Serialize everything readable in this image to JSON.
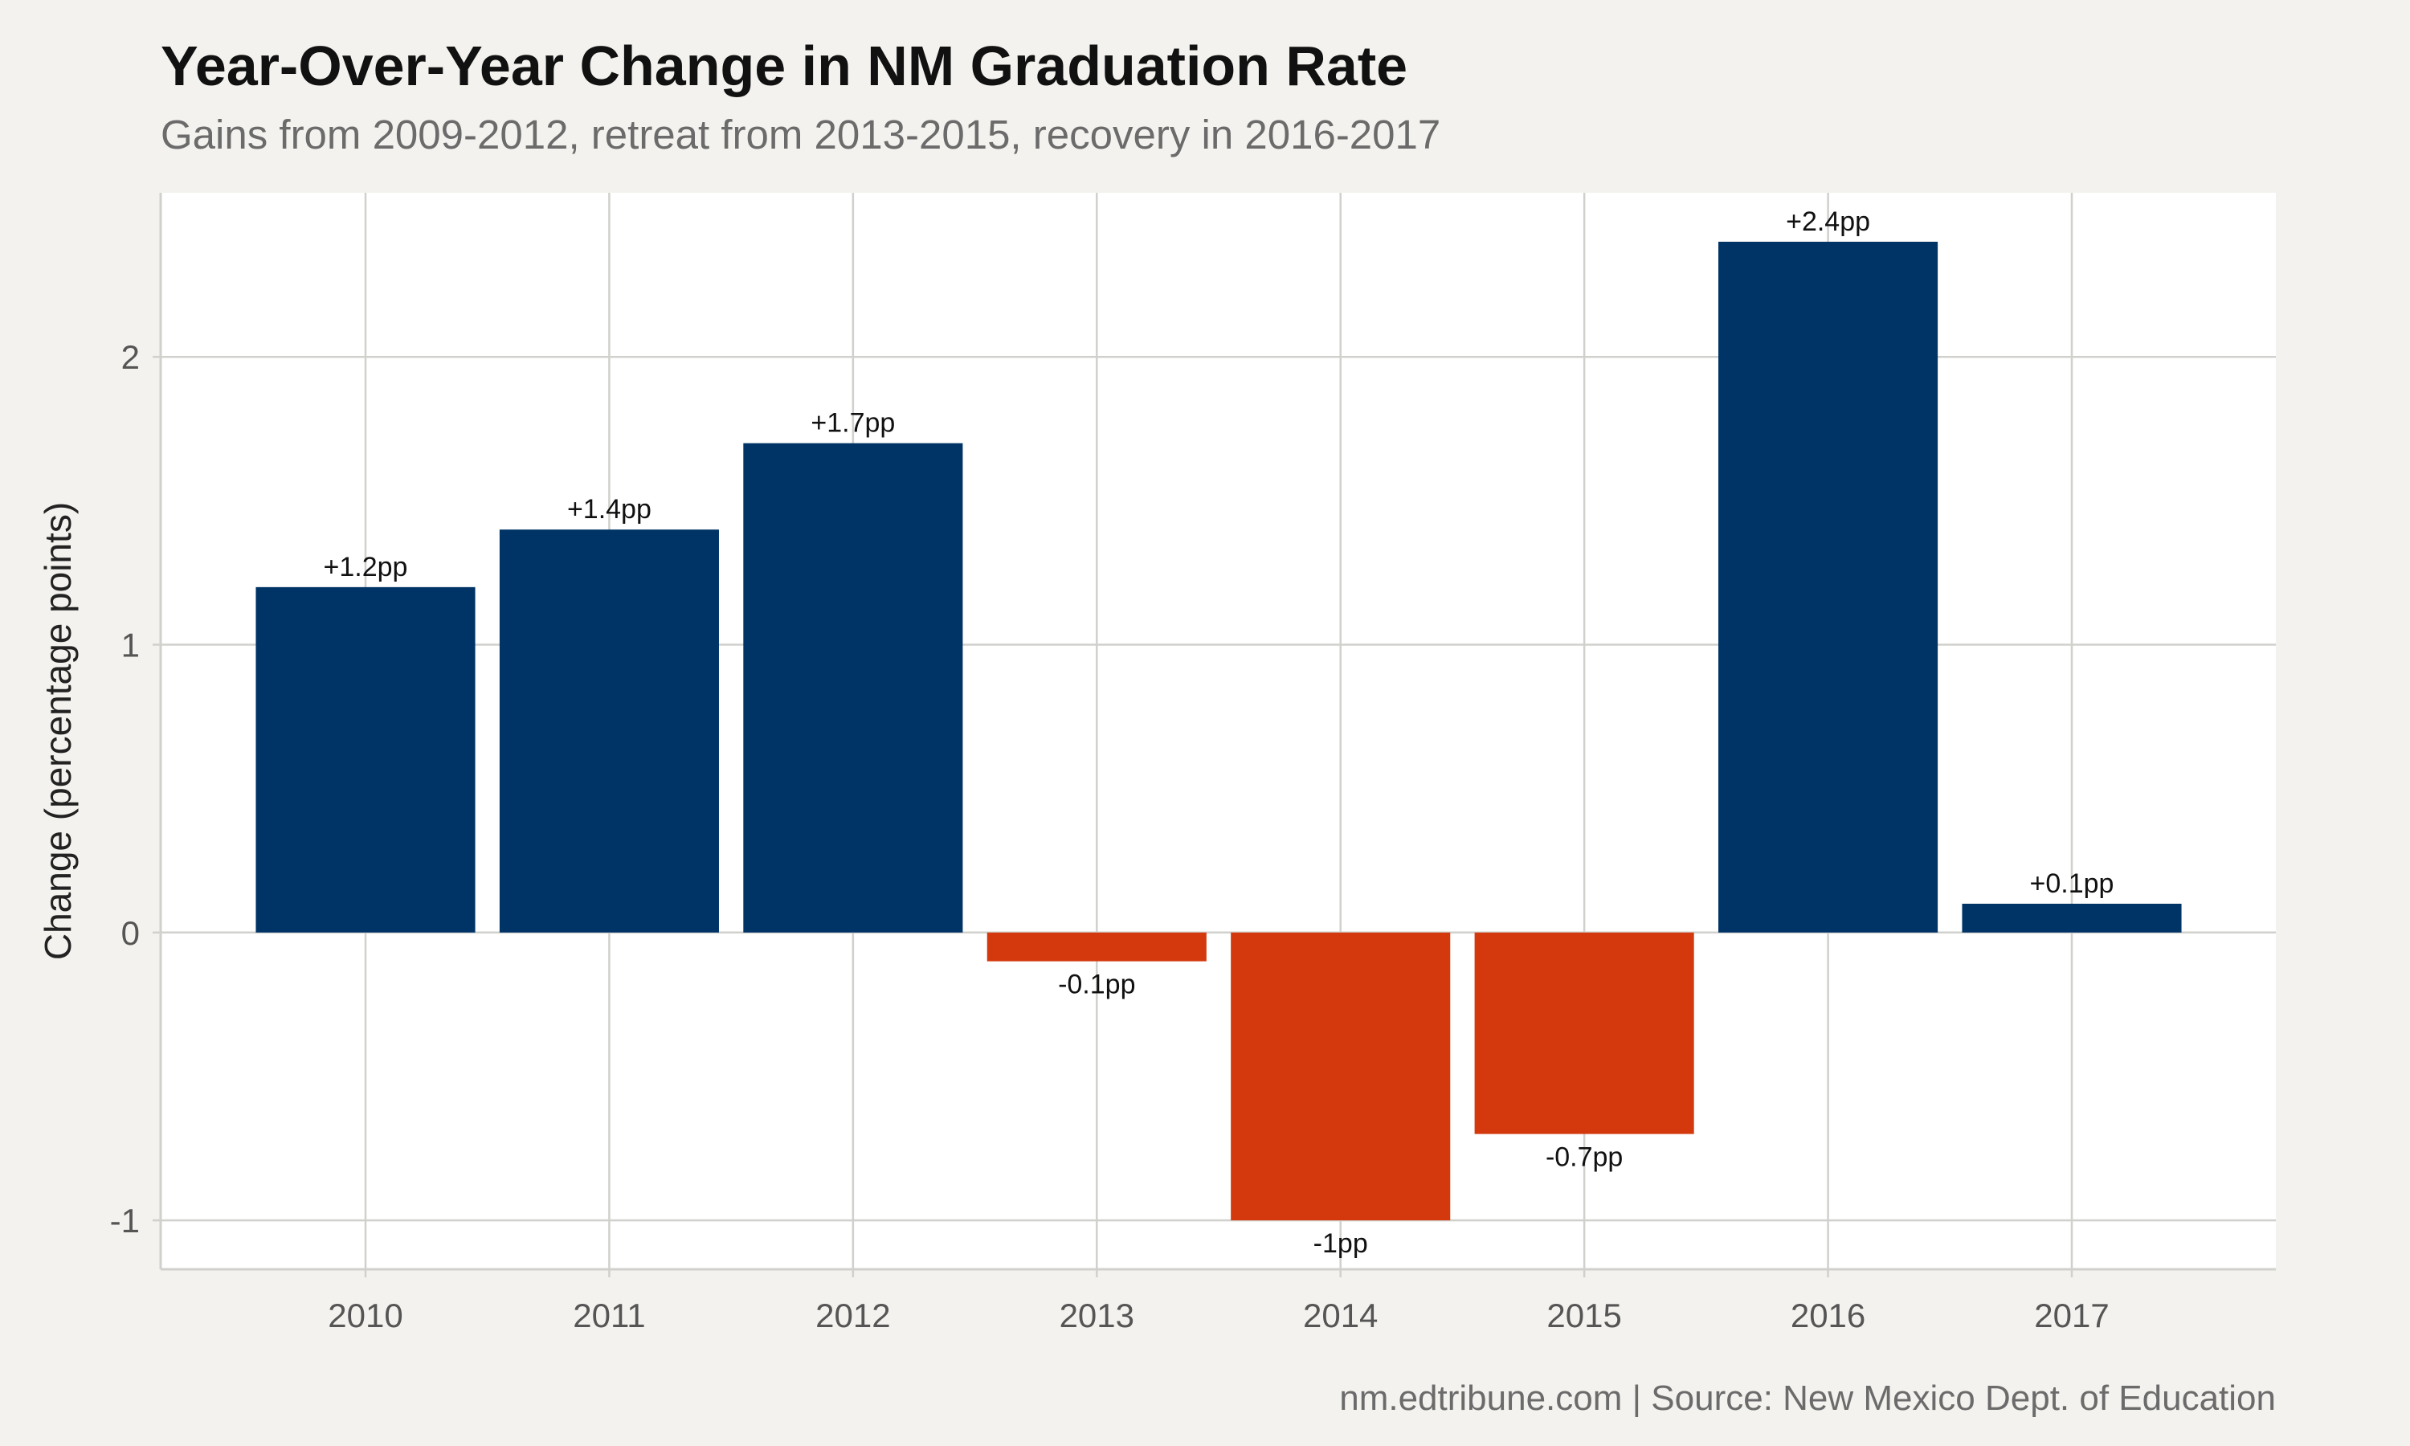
{
  "chart_data": {
    "type": "bar",
    "title": "Year-Over-Year Change in NM Graduation Rate",
    "subtitle": "Gains from 2009-2012, retreat from 2013-2015, recovery in 2016-2017",
    "caption": "nm.edtribune.com | Source: New Mexico Dept. of Education",
    "xlabel": "",
    "ylabel": "Change (percentage points)",
    "categories": [
      "2010",
      "2011",
      "2012",
      "2013",
      "2014",
      "2015",
      "2016",
      "2017"
    ],
    "values": [
      1.2,
      1.4,
      1.7,
      -0.1,
      -1.0,
      -0.7,
      2.4,
      0.1
    ],
    "data_labels": [
      "+1.2pp",
      "+1.4pp",
      "+1.7pp",
      "-0.1pp",
      "-1pp",
      "-0.7pp",
      "+2.4pp",
      "+0.1pp"
    ],
    "ylim": [
      -1.17,
      2.57
    ],
    "yticks": [
      -1,
      0,
      1,
      2
    ],
    "ytick_labels": [
      "-1",
      "0",
      "1",
      "2"
    ],
    "grid": true,
    "legend": "none",
    "colors": {
      "positive": "#003366",
      "negative": "#d4380d",
      "panel": "#ffffff",
      "background": "#f4f2ee",
      "grid": "#d0d0cc"
    }
  }
}
